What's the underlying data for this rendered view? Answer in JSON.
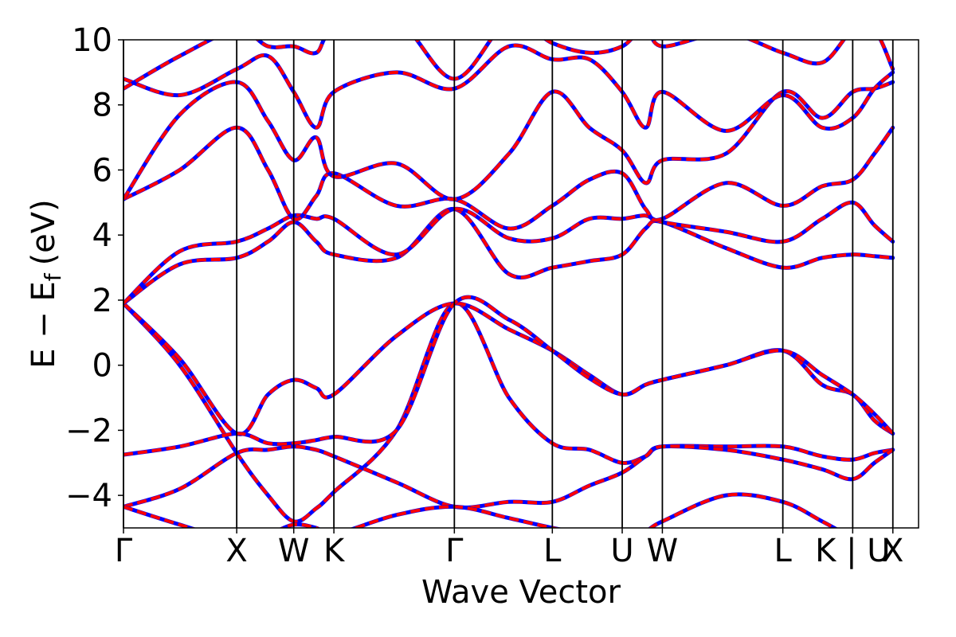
{
  "chart_data": {
    "type": "line",
    "title": "",
    "xlabel": "Wave Vector",
    "ylabel": "E − E",
    "ylabel_sub": "f",
    "ylabel_unit": "(eV)",
    "ylim": [
      -5,
      10
    ],
    "yticks": [
      -4,
      -2,
      0,
      2,
      4,
      6,
      8,
      10
    ],
    "ytick_labels": [
      "−4",
      "−2",
      "0",
      "2",
      "4",
      "6",
      "8",
      "10"
    ],
    "xlim": [
      0,
      9.9
    ],
    "kpoints": [
      {
        "label": "Γ",
        "x": 0.0
      },
      {
        "label": "X",
        "x": 1.41
      },
      {
        "label": "W",
        "x": 2.12
      },
      {
        "label": "K",
        "x": 2.62
      },
      {
        "label": "Γ",
        "x": 4.12
      },
      {
        "label": "L",
        "x": 5.34
      },
      {
        "label": "U",
        "x": 6.21
      },
      {
        "label": "W",
        "x": 6.71
      },
      {
        "label": "L",
        "x": 8.21
      },
      {
        "label": "K | U",
        "x": 9.08
      },
      {
        "label": "X",
        "x": 9.58
      }
    ],
    "grid": false,
    "legend": "none",
    "series": [
      {
        "color": "#0000ff",
        "style": "solid",
        "x": [
          0,
          0.7,
          1.41,
          1.8,
          2.12,
          2.4,
          2.62,
          3.4,
          4.12,
          4.8,
          5.34,
          5.8,
          6.21,
          6.5,
          6.71,
          7.5,
          8.21,
          8.7,
          9.08,
          9.35,
          9.58
        ],
        "y": [
          1.9,
          0.0,
          -2.7,
          -4.0,
          -4.8,
          -4.4,
          -3.9,
          -2.0,
          1.9,
          -1.0,
          -2.4,
          -2.6,
          -3.0,
          -2.8,
          -2.5,
          -2.5,
          -2.5,
          -2.8,
          -2.9,
          -2.7,
          -2.6
        ]
      },
      {
        "color": "#0000ff",
        "style": "solid",
        "x": [
          0,
          0.7,
          1.41,
          1.8,
          2.12,
          2.4,
          2.62,
          3.4,
          4.12,
          4.8,
          5.34,
          5.8,
          6.21,
          6.5,
          6.71,
          7.5,
          8.21,
          8.7,
          9.08,
          9.35,
          9.58
        ],
        "y": [
          1.9,
          0.2,
          -2.1,
          -0.9,
          -0.45,
          -0.7,
          -0.9,
          0.9,
          1.9,
          1.1,
          0.45,
          -0.3,
          -0.9,
          -0.6,
          -0.45,
          0.0,
          0.45,
          -0.6,
          -0.9,
          -1.7,
          -2.1
        ]
      },
      {
        "color": "#0000ff",
        "style": "solid",
        "x": [
          0,
          0.7,
          1.41,
          1.8,
          2.12,
          2.4,
          2.62,
          3.4,
          4.12,
          4.8,
          5.34,
          5.8,
          6.21,
          6.5,
          6.71,
          7.5,
          8.21,
          8.7,
          9.08,
          9.35,
          9.58
        ],
        "y": [
          -2.75,
          -2.5,
          -2.1,
          -2.4,
          -2.4,
          -2.3,
          -2.2,
          -2.0,
          1.9,
          1.4,
          0.45,
          -0.4,
          -0.9,
          -0.6,
          -0.45,
          0.0,
          0.45,
          -0.3,
          -0.9,
          -1.5,
          -2.1
        ]
      },
      {
        "color": "#0000ff",
        "style": "solid",
        "x": [
          0,
          0.7,
          1.41,
          1.8,
          2.12,
          2.4,
          2.62,
          3.4,
          4.12,
          4.8,
          5.34,
          5.8,
          6.21,
          6.5,
          6.71,
          7.5,
          8.21,
          8.7,
          9.08,
          9.35,
          9.58
        ],
        "y": [
          -4.35,
          -3.8,
          -2.7,
          -2.6,
          -2.5,
          -2.6,
          -2.8,
          -3.6,
          -4.35,
          -4.2,
          -4.2,
          -3.7,
          -3.3,
          -2.8,
          -2.5,
          -2.6,
          -2.9,
          -3.2,
          -3.5,
          -3.0,
          -2.6
        ]
      },
      {
        "color": "#0000ff",
        "style": "solid",
        "x": [
          0,
          0.7,
          1.41,
          1.8,
          2.12,
          2.4,
          2.62,
          3.4,
          4.12,
          4.8,
          5.34,
          5.8,
          6.21,
          6.5,
          6.71,
          7.5,
          8.21,
          8.7,
          9.08,
          9.35,
          9.58
        ],
        "y": [
          1.9,
          3.1,
          3.3,
          3.8,
          4.4,
          3.8,
          3.4,
          3.3,
          4.8,
          2.8,
          3.0,
          3.2,
          3.4,
          4.2,
          4.4,
          3.6,
          3.0,
          3.3,
          3.4,
          3.35,
          3.3
        ]
      },
      {
        "color": "#0000ff",
        "style": "solid",
        "x": [
          0,
          0.7,
          1.41,
          1.8,
          2.12,
          2.4,
          2.62,
          3.4,
          4.12,
          4.8,
          5.34,
          5.8,
          6.21,
          6.5,
          6.71,
          7.5,
          8.21,
          8.7,
          9.08,
          9.35,
          9.58
        ],
        "y": [
          1.9,
          3.5,
          3.8,
          4.2,
          4.6,
          4.5,
          4.5,
          3.4,
          4.8,
          3.9,
          3.9,
          4.5,
          4.5,
          4.6,
          4.4,
          4.1,
          3.8,
          4.5,
          5.0,
          4.3,
          3.8
        ]
      },
      {
        "color": "#0000ff",
        "style": "solid",
        "x": [
          0,
          0.7,
          1.41,
          1.8,
          2.12,
          2.4,
          2.62,
          3.4,
          4.12,
          4.8,
          5.34,
          5.8,
          6.21,
          6.5,
          6.71,
          7.5,
          8.21,
          8.7,
          9.08,
          9.35,
          9.58
        ],
        "y": [
          5.1,
          6.0,
          7.3,
          6.0,
          4.5,
          5.2,
          5.9,
          4.9,
          5.1,
          4.2,
          4.9,
          5.7,
          5.9,
          4.8,
          4.5,
          5.6,
          4.9,
          5.5,
          5.7,
          6.5,
          7.3
        ]
      },
      {
        "color": "#0000ff",
        "style": "solid",
        "x": [
          0,
          0.7,
          1.41,
          1.8,
          2.12,
          2.4,
          2.62,
          3.4,
          4.12,
          4.8,
          5.34,
          5.8,
          6.21,
          6.5,
          6.71,
          7.5,
          8.21,
          8.7,
          9.08,
          9.35,
          9.58
        ],
        "y": [
          5.1,
          7.7,
          8.7,
          7.5,
          6.3,
          7.0,
          5.8,
          6.2,
          5.1,
          6.5,
          8.4,
          7.3,
          6.6,
          5.6,
          6.3,
          6.5,
          8.4,
          7.6,
          8.4,
          8.5,
          8.7
        ]
      },
      {
        "color": "#0000ff",
        "style": "solid",
        "x": [
          0,
          0.7,
          1.41,
          1.8,
          2.12,
          2.4,
          2.62,
          3.4,
          4.12,
          4.8,
          5.34,
          5.8,
          6.21,
          6.5,
          6.71,
          7.5,
          8.21,
          8.7,
          9.08,
          9.35,
          9.58
        ],
        "y": [
          8.8,
          8.3,
          9.1,
          9.5,
          8.4,
          7.3,
          8.4,
          9.0,
          8.5,
          9.8,
          9.4,
          9.4,
          8.4,
          7.3,
          8.4,
          7.2,
          8.3,
          7.3,
          7.6,
          8.5,
          9.0
        ]
      },
      {
        "color": "#0000ff",
        "style": "solid",
        "x": [
          0,
          0.7,
          1.41,
          1.8,
          2.12,
          2.4,
          2.62,
          3.4,
          4.12,
          4.8,
          5.34,
          5.8,
          6.21,
          6.5,
          6.71,
          7.5,
          8.21,
          8.7,
          9.08,
          9.35,
          9.58
        ],
        "y": [
          8.5,
          9.5,
          10.3,
          9.8,
          9.8,
          9.6,
          10.3,
          10.6,
          8.8,
          10.6,
          9.9,
          9.6,
          9.8,
          10.4,
          9.8,
          10.2,
          9.6,
          9.3,
          10.3,
          10.3,
          9.1
        ]
      },
      {
        "color": "#0000ff",
        "style": "solid",
        "x": [
          0,
          0.7,
          1.41,
          1.8,
          2.12,
          2.4,
          2.62,
          3.4,
          4.12,
          4.8,
          5.34,
          5.8,
          6.21,
          6.5,
          6.71,
          7.5,
          8.21,
          8.7,
          9.08,
          9.35,
          9.58
        ],
        "y": [
          -4.35,
          -4.9,
          -5.4,
          -5.2,
          -4.9,
          -5.0,
          -5.2,
          -4.6,
          -4.35,
          -4.7,
          -5.0,
          -5.2,
          -5.3,
          -5.1,
          -4.8,
          -4.0,
          -4.2,
          -4.8,
          -5.3,
          -5.5,
          -5.6
        ]
      }
    ]
  }
}
